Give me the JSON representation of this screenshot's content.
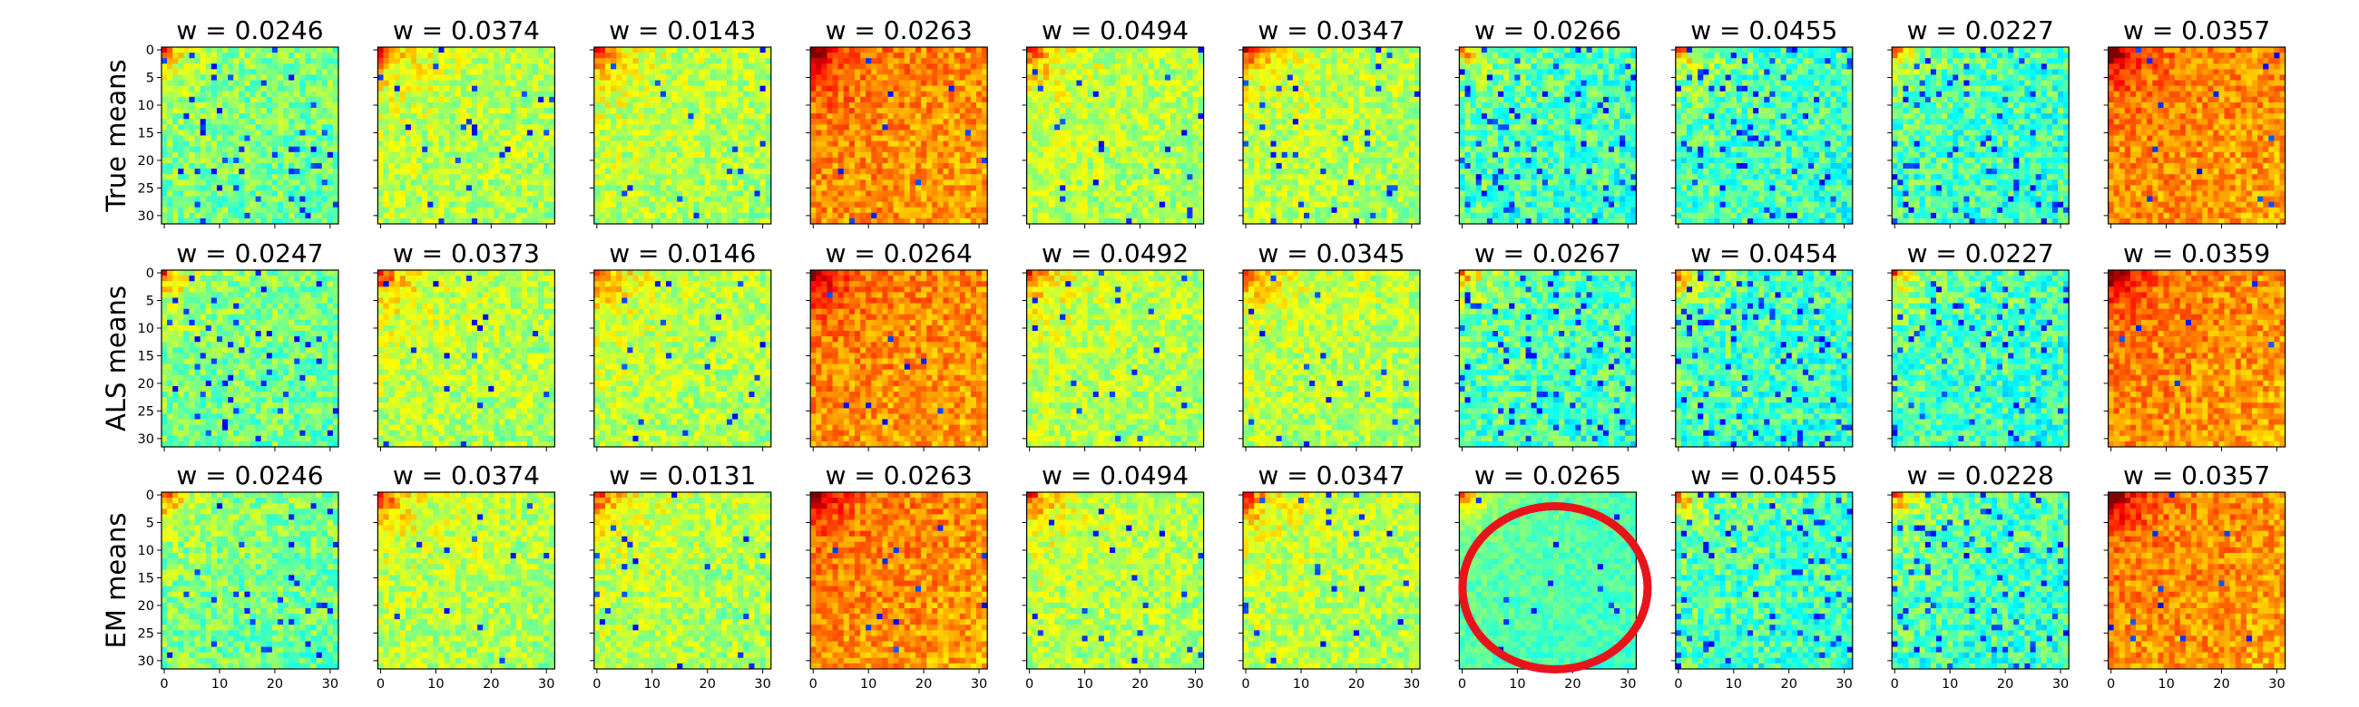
{
  "chart_data": {
    "type": "heatmap",
    "grid": false,
    "colormap": "jet",
    "rows": [
      {
        "ylabel": "True means",
        "panels": [
          {
            "title": "w = 0.0246",
            "profile": "cool"
          },
          {
            "title": "w = 0.0374",
            "profile": "mid"
          },
          {
            "title": "w = 0.0143",
            "profile": "mid"
          },
          {
            "title": "w = 0.0263",
            "profile": "warm"
          },
          {
            "title": "w = 0.0494",
            "profile": "mid"
          },
          {
            "title": "w = 0.0347",
            "profile": "mid"
          },
          {
            "title": "w = 0.0266",
            "profile": "cold"
          },
          {
            "title": "w = 0.0455",
            "profile": "cold"
          },
          {
            "title": "w = 0.0227",
            "profile": "cold"
          },
          {
            "title": "w = 0.0357",
            "profile": "warm"
          }
        ]
      },
      {
        "ylabel": "ALS means",
        "panels": [
          {
            "title": "w = 0.0247",
            "profile": "cool"
          },
          {
            "title": "w = 0.0373",
            "profile": "mid"
          },
          {
            "title": "w = 0.0146",
            "profile": "mid"
          },
          {
            "title": "w = 0.0264",
            "profile": "warm"
          },
          {
            "title": "w = 0.0492",
            "profile": "mid"
          },
          {
            "title": "w = 0.0345",
            "profile": "mid"
          },
          {
            "title": "w = 0.0267",
            "profile": "cold"
          },
          {
            "title": "w = 0.0454",
            "profile": "cold"
          },
          {
            "title": "w = 0.0227",
            "profile": "cold"
          },
          {
            "title": "w = 0.0359",
            "profile": "warm"
          }
        ]
      },
      {
        "ylabel": "EM means",
        "panels": [
          {
            "title": "w = 0.0246",
            "profile": "cool"
          },
          {
            "title": "w = 0.0374",
            "profile": "mid"
          },
          {
            "title": "w = 0.0131",
            "profile": "mid"
          },
          {
            "title": "w = 0.0263",
            "profile": "warm"
          },
          {
            "title": "w = 0.0494",
            "profile": "mid"
          },
          {
            "title": "w = 0.0347",
            "profile": "mid"
          },
          {
            "title": "w = 0.0265",
            "profile": "flat",
            "circled": true
          },
          {
            "title": "w = 0.0455",
            "profile": "cold"
          },
          {
            "title": "w = 0.0228",
            "profile": "cold"
          },
          {
            "title": "w = 0.0357",
            "profile": "warm"
          }
        ]
      }
    ],
    "xlim": [
      0,
      31
    ],
    "ylim": [
      31,
      0
    ],
    "yticks": [
      0,
      5,
      10,
      15,
      20,
      25,
      30
    ],
    "xticks": [
      0,
      10,
      20,
      30
    ],
    "annotation": {
      "shape": "ellipse",
      "color": "#e8141b",
      "row": 2,
      "col": 6
    }
  }
}
